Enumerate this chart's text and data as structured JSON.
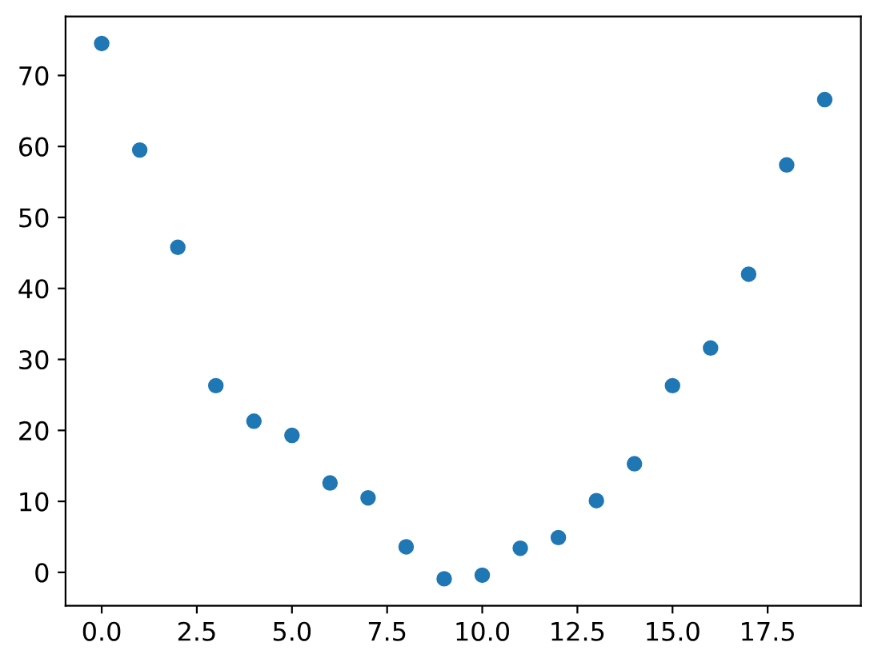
{
  "chart_data": {
    "type": "scatter",
    "x": [
      0,
      1,
      2,
      3,
      4,
      5,
      6,
      7,
      8,
      9,
      10,
      11,
      12,
      13,
      14,
      15,
      16,
      17,
      18,
      19
    ],
    "values": [
      74.5,
      59.5,
      45.8,
      26.3,
      21.3,
      19.3,
      12.6,
      10.5,
      3.6,
      -0.9,
      -0.4,
      3.4,
      4.9,
      10.1,
      15.3,
      26.3,
      31.6,
      42.0,
      57.4,
      66.6
    ],
    "color": "#1f77b4",
    "marker": "circle",
    "xlim": [
      -0.95,
      19.95
    ],
    "ylim": [
      -4.7,
      78.3
    ],
    "xticks": [
      {
        "value": 0,
        "label": "0.0"
      },
      {
        "value": 2.5,
        "label": "2.5"
      },
      {
        "value": 5,
        "label": "5.0"
      },
      {
        "value": 7.5,
        "label": "7.5"
      },
      {
        "value": 10,
        "label": "10.0"
      },
      {
        "value": 12.5,
        "label": "12.5"
      },
      {
        "value": 15,
        "label": "15.0"
      },
      {
        "value": 17.5,
        "label": "17.5"
      }
    ],
    "yticks": [
      0,
      10,
      20,
      30,
      40,
      50,
      60,
      70
    ],
    "grid": false
  }
}
